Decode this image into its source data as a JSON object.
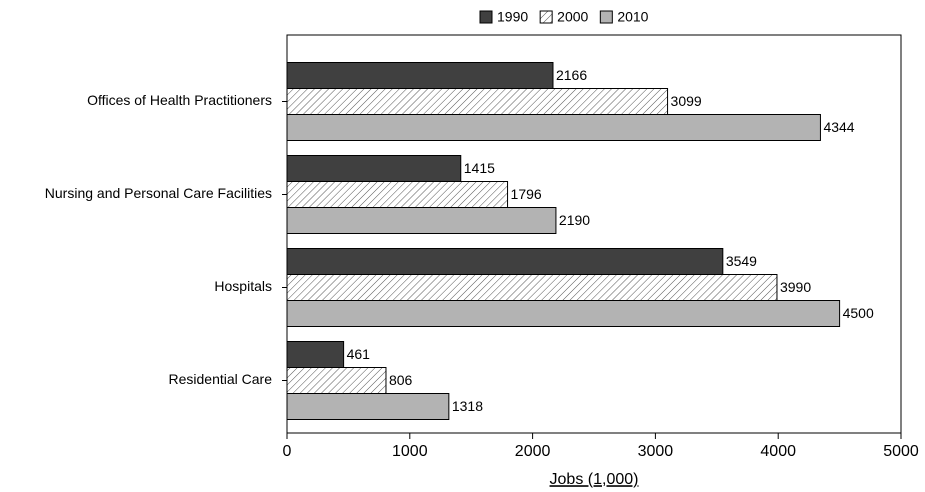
{
  "chart_data": {
    "type": "hbar",
    "categories": [
      "Offices of Health Practitioners",
      "Nursing and Personal Care Facilities",
      "Hospitals",
      "Residential Care"
    ],
    "series": [
      {
        "name": "1990",
        "color": "#404040",
        "values": [
          2166,
          1415,
          3549,
          461
        ]
      },
      {
        "name": "2000",
        "color": "#ffffff",
        "pattern": "hatch",
        "values": [
          3099,
          1796,
          3990,
          806
        ]
      },
      {
        "name": "2010",
        "color": "#b3b3b3",
        "values": [
          4344,
          2190,
          4500,
          1318
        ]
      }
    ],
    "xlabel": "Jobs (1,000)",
    "xlim": [
      0,
      5000
    ],
    "xticks": [
      0,
      1000,
      2000,
      3000,
      4000,
      5000
    ],
    "grid": false,
    "legend": "top"
  }
}
